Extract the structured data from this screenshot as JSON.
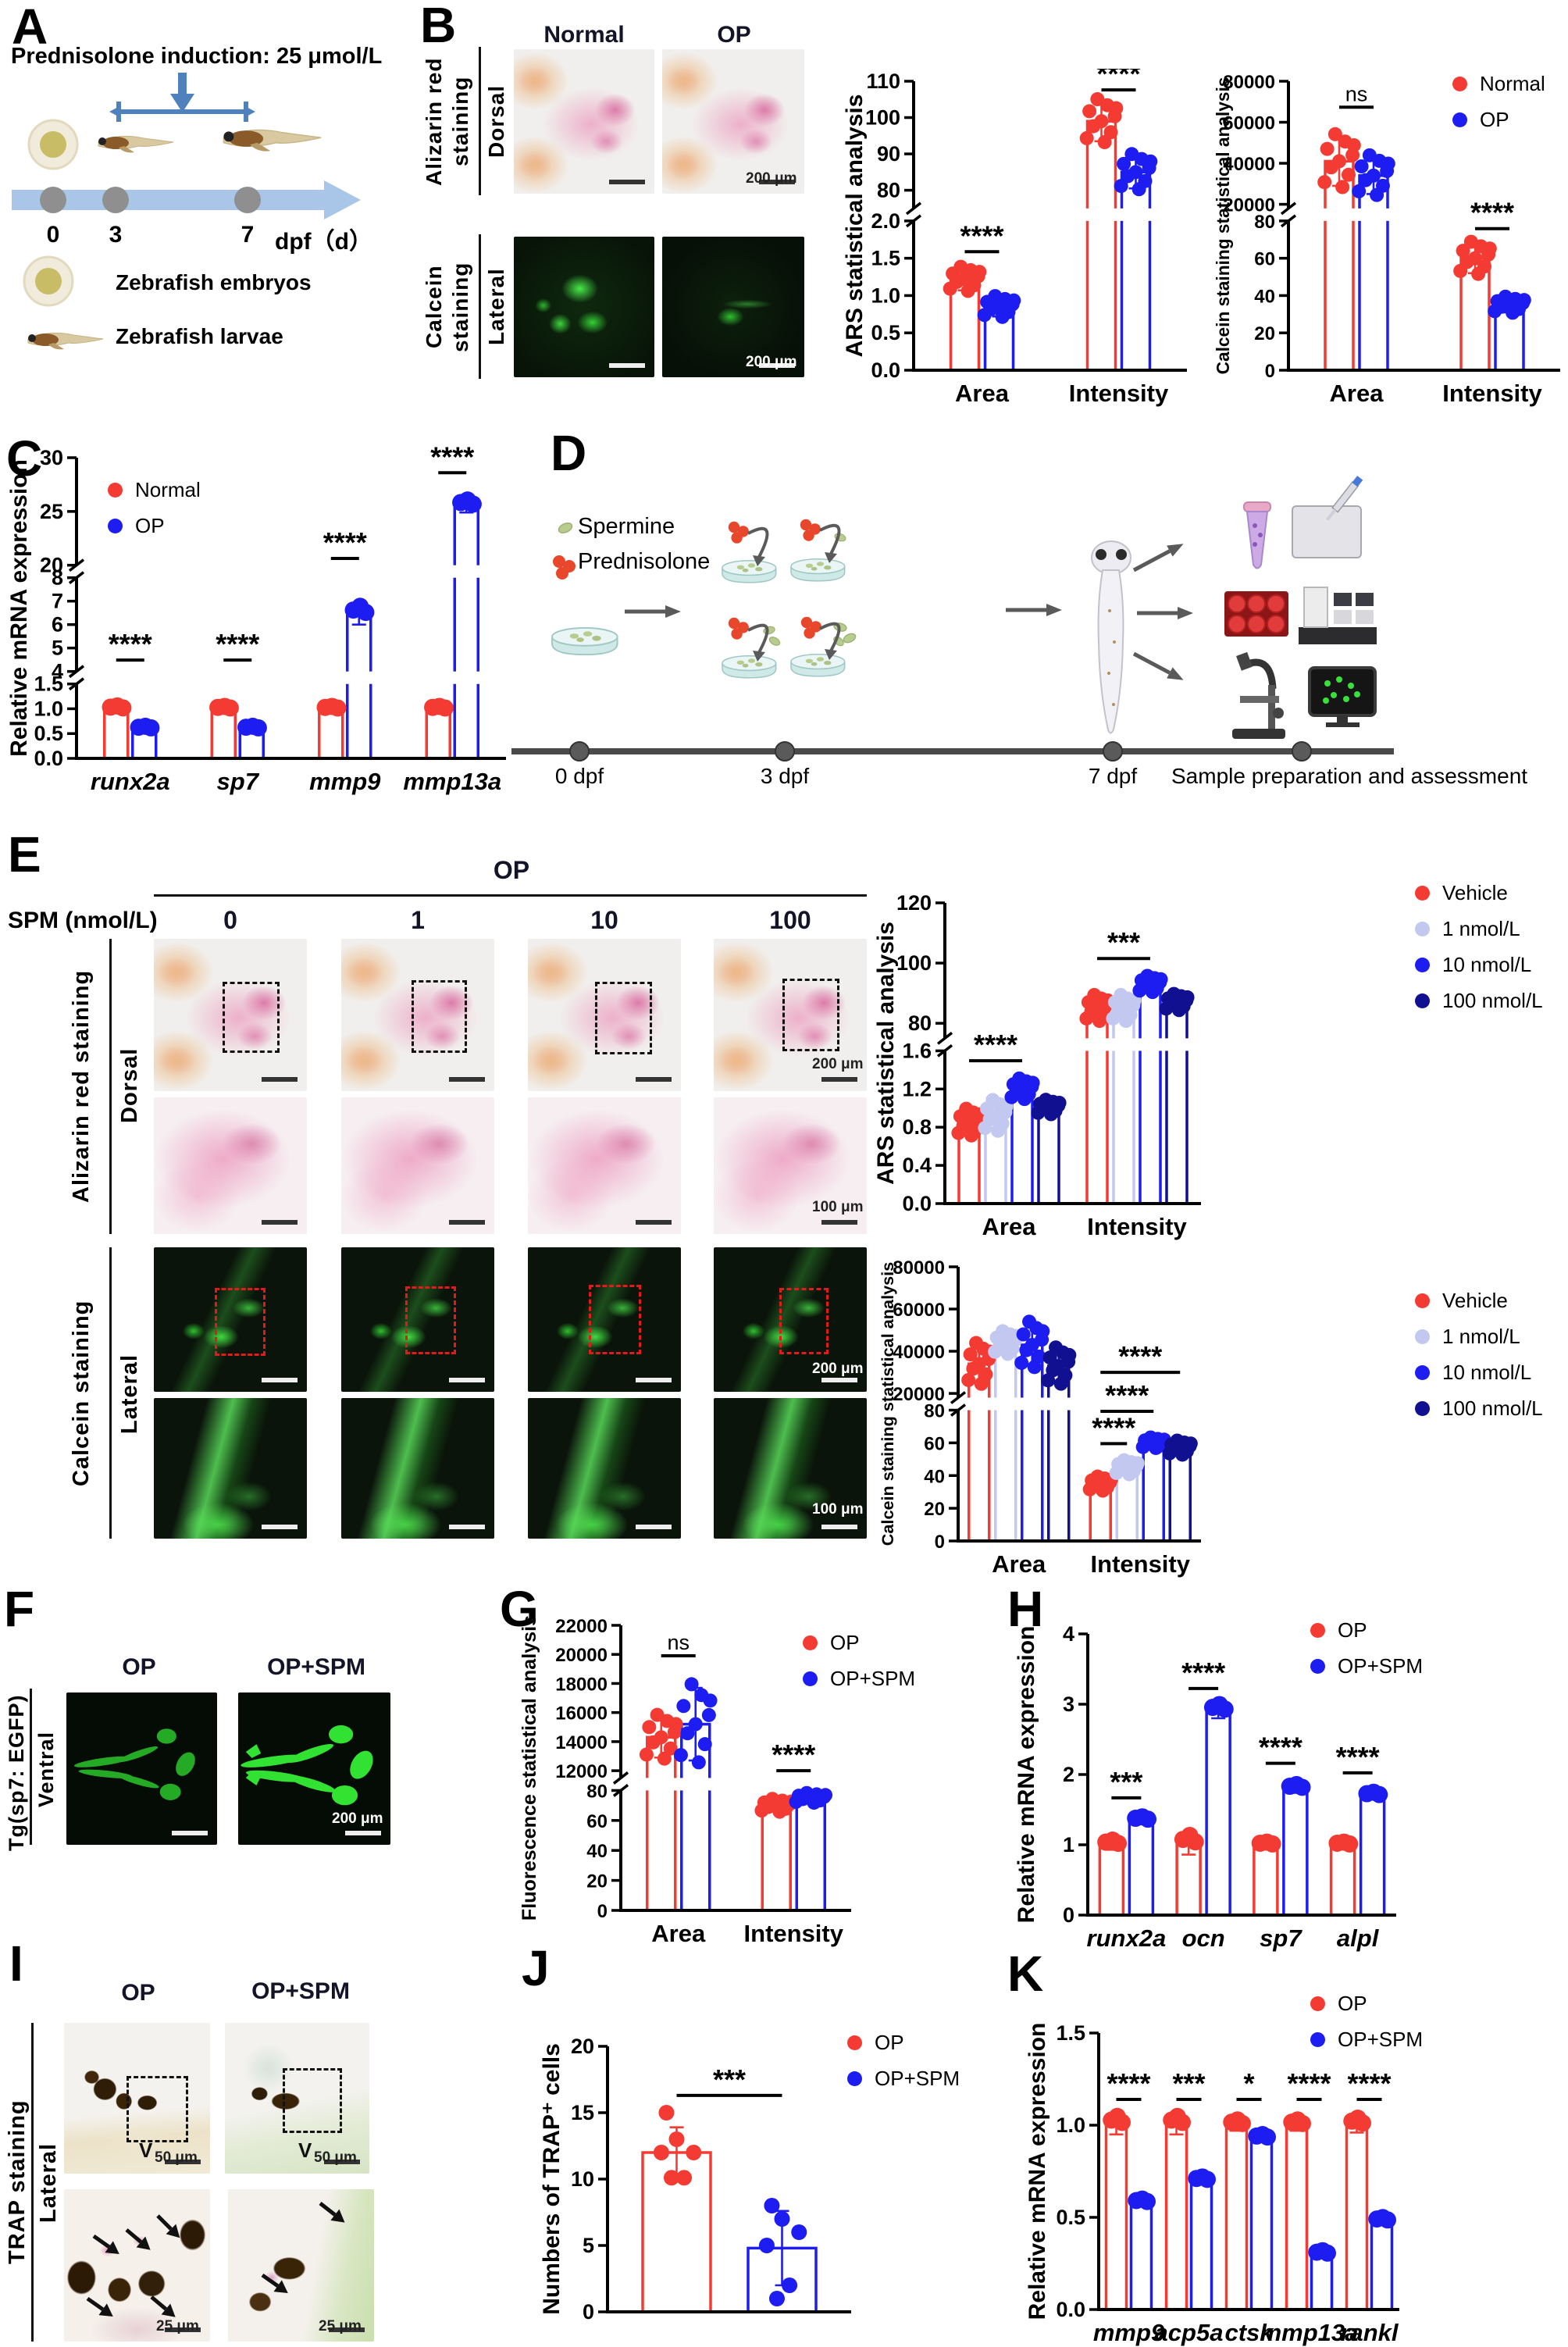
{
  "panels": {
    "A": {
      "label": "A",
      "title": "Prednisolone induction: 25 μmol/L",
      "t0": "0",
      "t3": "3",
      "t7": "7",
      "axis": "dpf（d）",
      "legend1": "Zebrafish embryos",
      "legend2": "Zebrafish larvae"
    },
    "B": {
      "label": "B",
      "col1": "Normal",
      "col2": "OP",
      "stain1a": "Alizarin red",
      "stain1b": "staining",
      "view1": "Dorsal",
      "stain2a": "Calcein",
      "stain2b": "staining",
      "view2": "Lateral",
      "scale200": "200 μm"
    },
    "C": {
      "label": "C"
    },
    "D": {
      "label": "D",
      "item1": "Spermine",
      "item2": "Prednisolone",
      "t0": "0 dpf",
      "t3": "3 dpf",
      "t7": "7 dpf",
      "caption": "Sample preparation and assessment"
    },
    "E": {
      "label": "E",
      "header": "OP",
      "spm": "SPM (nmol/L)",
      "doses": [
        "0",
        "1",
        "10",
        "100"
      ],
      "stain1": "Alizarin red staining",
      "view1": "Dorsal",
      "stain2": "Calcein staining",
      "view2": "Lateral",
      "scale200": "200 μm",
      "scale100": "100 μm"
    },
    "F": {
      "label": "F",
      "col1": "OP",
      "col2": "OP+SPM",
      "line": "Tg(sp7: EGFP)",
      "view": "Ventral",
      "scale200": "200 μm"
    },
    "G": {
      "label": "G"
    },
    "H": {
      "label": "H"
    },
    "I": {
      "label": "I",
      "col1": "OP",
      "col2": "OP+SPM",
      "stain": "TRAP staining",
      "view": "Lateral",
      "scale50": "50 μm",
      "scale25": "25 μm",
      "v": "V"
    },
    "J": {
      "label": "J"
    },
    "K": {
      "label": "K"
    }
  },
  "chart_data": [
    {
      "id": "b_ars",
      "type": "bar",
      "ylabel": "ARS statistical analysis",
      "groups": [
        "Area",
        "Intensity"
      ],
      "italic_x": false,
      "series": [
        {
          "name": "Normal",
          "color": "#f43b33"
        },
        {
          "name": "OP",
          "color": "#1d1df2"
        }
      ],
      "values": [
        [
          1.22,
          0.85
        ],
        [
          99,
          85
        ]
      ],
      "errors": [
        [
          0.15,
          0.13
        ],
        [
          5.5,
          4.5
        ]
      ],
      "dots_n": 10,
      "bw": 36,
      "ml": 92,
      "segments": [
        {
          "min": 0,
          "max": 2,
          "ticks": [
            "0.0",
            "0.5",
            "1.0",
            "1.5",
            "2.0"
          ],
          "f": 0.54
        },
        {
          "min": 75,
          "max": 110,
          "ticks": [
            "80",
            "90",
            "100",
            "110"
          ],
          "f": 0.46
        }
      ],
      "sig": [
        {
          "a": [
            0,
            0
          ],
          "b": [
            0,
            1
          ],
          "yf": 0.59,
          "label": "****"
        },
        {
          "a": [
            1,
            0
          ],
          "b": [
            1,
            1
          ],
          "yf": 0.03,
          "label": "****"
        }
      ]
    },
    {
      "id": "b_cal",
      "type": "bar",
      "ylabel": "Calcein staining statistical analysis",
      "groups": [
        "Area",
        "Intensity"
      ],
      "italic_x": false,
      "series": [
        {
          "name": "Normal",
          "color": "#f43b33"
        },
        {
          "name": "OP",
          "color": "#1d1df2"
        }
      ],
      "values": [
        [
          41000,
          34000
        ],
        [
          60,
          35
        ]
      ],
      "errors": [
        [
          12000,
          9000
        ],
        [
          8,
          4
        ]
      ],
      "dots_n": 10,
      "bw": 36,
      "ml": 102,
      "tf": 24,
      "segments": [
        {
          "min": 0,
          "max": 80,
          "ticks": [
            "0",
            "20",
            "40",
            "60",
            "80"
          ],
          "f": 0.54
        },
        {
          "min": 18000,
          "max": 80000,
          "ticks": [
            "20000",
            "40000",
            "60000",
            "80000"
          ],
          "f": 0.46
        }
      ],
      "sig": [
        {
          "a": [
            0,
            0
          ],
          "b": [
            0,
            1
          ],
          "yf": 0.09,
          "label": "ns"
        },
        {
          "a": [
            1,
            0
          ],
          "b": [
            1,
            1
          ],
          "yf": 0.51,
          "label": "****"
        }
      ]
    },
    {
      "id": "c",
      "type": "bar",
      "ylabel": "Relative mRNA expression",
      "groups": [
        "runx2a",
        "sp7",
        "mmp9",
        "mmp13a"
      ],
      "italic_x": true,
      "series": [
        {
          "name": "Normal",
          "color": "#f43b33"
        },
        {
          "name": "OP",
          "color": "#1d1df2"
        }
      ],
      "values": [
        [
          1,
          0.6
        ],
        [
          1,
          0.6
        ],
        [
          1,
          6.4
        ],
        [
          1,
          25.5
        ]
      ],
      "errors": [
        [
          0.06,
          0.05
        ],
        [
          0.05,
          0.05
        ],
        [
          0.05,
          0.4
        ],
        [
          0.05,
          0.6
        ]
      ],
      "dots_n": 3,
      "bw": 30,
      "bg": 6,
      "ml": 90,
      "segments": [
        {
          "min": 0,
          "max": 1.5,
          "ticks": [
            "0.0",
            "0.5",
            "1.0",
            "1.5"
          ],
          "f": 0.27
        },
        {
          "min": 4,
          "max": 8,
          "ticks": [
            "4",
            "5",
            "6",
            "7",
            "8"
          ],
          "f": 0.34
        },
        {
          "min": 20,
          "max": 30,
          "ticks": [
            "20",
            "25",
            "30"
          ],
          "f": 0.39
        }
      ],
      "sig": [
        {
          "a": [
            0,
            0
          ],
          "b": [
            0,
            1
          ],
          "yf": 0.673,
          "label": "****"
        },
        {
          "a": [
            1,
            0
          ],
          "b": [
            1,
            1
          ],
          "yf": 0.673,
          "label": "****"
        },
        {
          "a": [
            2,
            0
          ],
          "b": [
            2,
            1
          ],
          "yf": 0.335,
          "label": "****"
        },
        {
          "a": [
            3,
            0
          ],
          "b": [
            3,
            1
          ],
          "yf": 0.05,
          "label": "****"
        }
      ]
    },
    {
      "id": "e_ars",
      "type": "bar",
      "ylabel": "ARS statistical analysis",
      "groups": [
        "Area",
        "Intensity"
      ],
      "italic_x": false,
      "series": [
        {
          "name": "Vehicle",
          "color": "#f43b33"
        },
        {
          "name": "1 nmol/L",
          "color": "#c3c8f0"
        },
        {
          "name": "10 nmol/L",
          "color": "#1d1df2"
        },
        {
          "name": "100 nmol/L",
          "color": "#101090"
        }
      ],
      "values": [
        [
          0.85,
          0.92,
          1.2,
          1.01
        ],
        [
          85,
          85,
          93,
          87
        ]
      ],
      "errors": [
        [
          0.13,
          0.15,
          0.1,
          0.07
        ],
        [
          4,
          4,
          2.5,
          2.5
        ]
      ],
      "dots_n": 10,
      "bw": 26,
      "ml": 92,
      "segments": [
        {
          "min": 0,
          "max": 1.6,
          "ticks": [
            "0.0",
            "0.4",
            "0.8",
            "1.2",
            "1.6"
          ],
          "f": 0.53
        },
        {
          "min": 75,
          "max": 120,
          "ticks": [
            "80",
            "100",
            "120"
          ],
          "f": 0.47
        }
      ],
      "sig": [
        {
          "a": [
            0,
            0
          ],
          "b": [
            0,
            2
          ],
          "yf": 0.525,
          "label": "****"
        },
        {
          "a": [
            1,
            0
          ],
          "b": [
            1,
            2
          ],
          "yf": 0.185,
          "label": "***"
        }
      ]
    },
    {
      "id": "e_cal",
      "type": "bar",
      "ylabel": "Calcein staining statistical analysis",
      "groups": [
        "Area",
        "Intensity"
      ],
      "italic_x": false,
      "series": [
        {
          "name": "Vehicle",
          "color": "#f43b33"
        },
        {
          "name": "1 nmol/L",
          "color": "#c3c8f0"
        },
        {
          "name": "10 nmol/L",
          "color": "#1d1df2"
        },
        {
          "name": "100 nmol/L",
          "color": "#101090"
        }
      ],
      "values": [
        [
          34000,
          44000,
          43000,
          33000
        ],
        [
          35,
          45,
          60,
          57
        ]
      ],
      "errors": [
        [
          9000,
          5000,
          10000,
          8000
        ],
        [
          4,
          4,
          3,
          4
        ]
      ],
      "dots_n": 10,
      "bw": 26,
      "ml": 109,
      "tf": 24,
      "segments": [
        {
          "min": 0,
          "max": 80,
          "ticks": [
            "0",
            "20",
            "40",
            "60",
            "80"
          ],
          "f": 0.5
        },
        {
          "min": 18000,
          "max": 80000,
          "ticks": [
            "20000",
            "40000",
            "60000",
            "80000"
          ],
          "f": 0.5
        }
      ],
      "sig": [
        {
          "a": [
            1,
            0
          ],
          "b": [
            1,
            1
          ],
          "yf": 0.645,
          "label": "****"
        },
        {
          "a": [
            1,
            0
          ],
          "b": [
            1,
            2
          ],
          "yf": 0.527,
          "label": "****"
        },
        {
          "a": [
            1,
            0
          ],
          "b": [
            1,
            3
          ],
          "yf": 0.385,
          "label": "****"
        }
      ]
    },
    {
      "id": "g",
      "type": "bar",
      "ylabel": "Fluorescence statistical analysis",
      "groups": [
        "Area",
        "Intensity"
      ],
      "italic_x": false,
      "series": [
        {
          "name": "OP",
          "color": "#f43b33"
        },
        {
          "name": "OP+SPM",
          "color": "#1d1df2"
        }
      ],
      "values": [
        [
          14300,
          15200
        ],
        [
          70,
          75
        ]
      ],
      "errors": [
        [
          1400,
          2500
        ],
        [
          4,
          3
        ]
      ],
      "dots_n": 10,
      "bw": 36,
      "ml": 135,
      "tf": 24,
      "segments": [
        {
          "min": 0,
          "max": 80,
          "ticks": [
            "0",
            "20",
            "40",
            "60",
            "80"
          ],
          "f": 0.44
        },
        {
          "min": 11500,
          "max": 22000,
          "ticks": [
            "12000",
            "14000",
            "16000",
            "18000",
            "20000",
            "22000"
          ],
          "f": 0.56
        }
      ],
      "sig": [
        {
          "a": [
            0,
            0
          ],
          "b": [
            0,
            1
          ],
          "yf": 0.107,
          "label": "ns"
        },
        {
          "a": [
            1,
            0
          ],
          "b": [
            1,
            1
          ],
          "yf": 0.51,
          "label": "****"
        }
      ]
    },
    {
      "id": "h",
      "type": "bar",
      "ylabel": "Relative mRNA expression",
      "groups": [
        "runx2a",
        "ocn",
        "sp7",
        "alpl"
      ],
      "italic_x": true,
      "series": [
        {
          "name": "OP",
          "color": "#f43b33"
        },
        {
          "name": "OP+SPM",
          "color": "#1d1df2"
        }
      ],
      "values": [
        [
          1,
          1.35
        ],
        [
          1,
          2.9
        ],
        [
          1,
          1.8
        ],
        [
          1,
          1.7
        ]
      ],
      "errors": [
        [
          0.07,
          0.05
        ],
        [
          0.14,
          0.1
        ],
        [
          0.04,
          0.06
        ],
        [
          0.04,
          0.05
        ]
      ],
      "dots_n": 3,
      "bw": 30,
      "ml": 95,
      "segments": [
        {
          "min": 0,
          "max": 4,
          "ticks": [
            "0",
            "1",
            "2",
            "3",
            "4"
          ],
          "f": 1
        }
      ],
      "sig": [
        {
          "a": [
            0,
            0
          ],
          "b": [
            0,
            1
          ],
          "yf": 0.583,
          "label": "***"
        },
        {
          "a": [
            1,
            0
          ],
          "b": [
            1,
            1
          ],
          "yf": 0.194,
          "label": "****"
        },
        {
          "a": [
            2,
            0
          ],
          "b": [
            2,
            1
          ],
          "yf": 0.46,
          "label": "****"
        },
        {
          "a": [
            3,
            0
          ],
          "b": [
            3,
            1
          ],
          "yf": 0.494,
          "label": "****"
        }
      ]
    },
    {
      "id": "j",
      "type": "bar",
      "ylabel": "Numbers of TRAP⁺ cells",
      "groups": [
        ""
      ],
      "italic_x": false,
      "series": [
        {
          "name": "OP",
          "color": "#f43b33"
        },
        {
          "name": "OP+SPM",
          "color": "#1d1df2"
        }
      ],
      "values": [
        [
          12,
          4.8
        ]
      ],
      "errors": [
        [
          1.9,
          2.8
        ]
      ],
      "dots_n": 6,
      "bw": 87,
      "bg": 48,
      "dr": 10,
      "ml": 88,
      "dots": [
        [
          [
            10.1,
            10.1,
            12,
            12,
            13,
            15
          ],
          [
            1,
            2,
            5,
            6,
            7,
            8
          ]
        ]
      ],
      "segments": [
        {
          "min": 0,
          "max": 20,
          "ticks": [
            "0",
            "5",
            "10",
            "15",
            "20"
          ],
          "f": 1
        }
      ],
      "sig": [
        {
          "a": [
            0,
            0
          ],
          "b": [
            0,
            1
          ],
          "yf": 0.185,
          "label": "***"
        }
      ]
    },
    {
      "id": "k",
      "type": "bar",
      "ylabel": "Relative mRNA expression",
      "groups": [
        "mmp9",
        "acp5a",
        "ctsk",
        "mmp13a",
        "rankl"
      ],
      "italic_x": true,
      "series": [
        {
          "name": "OP",
          "color": "#f43b33"
        },
        {
          "name": "OP+SPM",
          "color": "#1d1df2"
        }
      ],
      "values": [
        [
          1,
          0.58
        ],
        [
          1,
          0.7
        ],
        [
          1,
          0.93
        ],
        [
          1,
          0.3
        ],
        [
          1,
          0.48
        ]
      ],
      "errors": [
        [
          0.05,
          0.02
        ],
        [
          0.05,
          0.02
        ],
        [
          0.03,
          0.02
        ],
        [
          0.03,
          0.02
        ],
        [
          0.04,
          0.02
        ]
      ],
      "dots_n": 3,
      "bw": 26,
      "bg": 6,
      "ml": 95,
      "segments": [
        {
          "min": 0,
          "max": 1.5,
          "ticks": [
            "0.0",
            "0.5",
            "1.0",
            "1.5"
          ],
          "f": 1
        }
      ],
      "sig": [
        {
          "a": [
            0,
            0
          ],
          "b": [
            0,
            1
          ],
          "yf": 0.24,
          "label": "****"
        },
        {
          "a": [
            1,
            0
          ],
          "b": [
            1,
            1
          ],
          "yf": 0.24,
          "label": "***"
        },
        {
          "a": [
            2,
            0
          ],
          "b": [
            2,
            1
          ],
          "yf": 0.24,
          "label": "*"
        },
        {
          "a": [
            3,
            0
          ],
          "b": [
            3,
            1
          ],
          "yf": 0.24,
          "label": "****"
        },
        {
          "a": [
            4,
            0
          ],
          "b": [
            4,
            1
          ],
          "yf": 0.24,
          "label": "****"
        }
      ]
    }
  ]
}
